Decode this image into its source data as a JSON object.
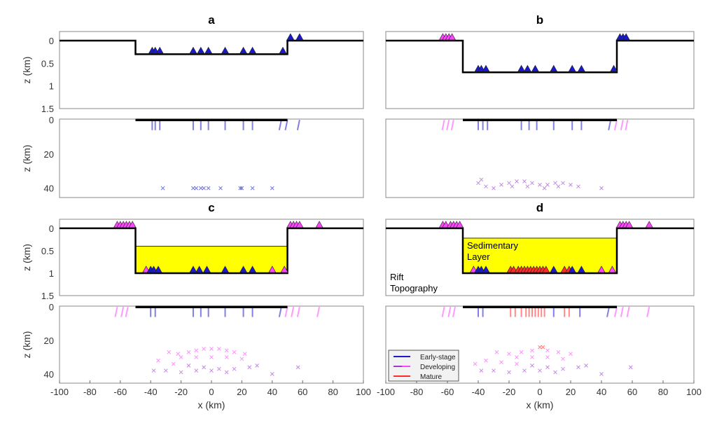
{
  "colors": {
    "early": "#1a1acc",
    "developing_dark": "#9a3ad0",
    "developing_light": "#ff44ff",
    "mature": "#ff2a2a",
    "sediment": "#ffff00",
    "rift": "#000000"
  },
  "chart_data": [
    {
      "type": "scatter",
      "panel": "a",
      "title": "a",
      "xlim": [
        -100,
        100
      ],
      "top_ylim": [
        1.5,
        -0.2
      ],
      "bottom_ylim": [
        45.5,
        -0.5
      ],
      "top_yticks": [
        "0",
        "0.5",
        "1",
        "1.5"
      ],
      "bottom_yticks": [
        "0",
        "20",
        "40"
      ],
      "ylabel": "z (km)",
      "xticks": [],
      "rift": {
        "left": -50,
        "right": 50,
        "depth": 0.3
      },
      "sediment_top": null,
      "stations": [
        [
          -39,
          0.3,
          "e"
        ],
        [
          -37,
          0.3,
          "e"
        ],
        [
          -34,
          0.3,
          "e"
        ],
        [
          -12,
          0.3,
          "e"
        ],
        [
          -7,
          0.3,
          "e"
        ],
        [
          -2,
          0.3,
          "e"
        ],
        [
          9,
          0.3,
          "e"
        ],
        [
          21,
          0.3,
          "e"
        ],
        [
          27,
          0.3,
          "e"
        ],
        [
          47,
          0.3,
          "e"
        ],
        [
          52,
          0,
          "e"
        ],
        [
          58,
          0,
          "e"
        ]
      ],
      "faults": [
        [
          -39,
          "e"
        ],
        [
          -37,
          "e"
        ],
        [
          -34,
          "e"
        ],
        [
          -12,
          "e"
        ],
        [
          -7,
          "e"
        ],
        [
          -2,
          "e"
        ],
        [
          9,
          "e"
        ],
        [
          21,
          "e"
        ],
        [
          27,
          "e"
        ],
        [
          46,
          "e"
        ],
        [
          50,
          "e"
        ],
        [
          58,
          "e"
        ]
      ],
      "events": [
        [
          -32,
          40,
          "e"
        ],
        [
          -12,
          40,
          "e"
        ],
        [
          -10,
          40,
          "e"
        ],
        [
          -7,
          40,
          "e"
        ],
        [
          -5,
          40,
          "e"
        ],
        [
          -2,
          40,
          "e"
        ],
        [
          6,
          40,
          "e"
        ],
        [
          19,
          40,
          "e"
        ],
        [
          20,
          40,
          "e"
        ],
        [
          27,
          40,
          "e"
        ],
        [
          40,
          40,
          "e"
        ]
      ]
    },
    {
      "type": "scatter",
      "panel": "b",
      "title": "b",
      "xlim": [
        -100,
        100
      ],
      "top_ylim": [
        1.5,
        -0.2
      ],
      "bottom_ylim": [
        45.5,
        -0.5
      ],
      "top_yticks": [],
      "bottom_yticks": [],
      "ylabel": "",
      "xticks": [],
      "rift": {
        "left": -50,
        "right": 50,
        "depth": 0.7
      },
      "sediment_top": null,
      "stations": [
        [
          -63,
          0,
          "d"
        ],
        [
          -61,
          0,
          "d"
        ],
        [
          -59,
          0,
          "d"
        ],
        [
          -57,
          0,
          "d"
        ],
        [
          -40,
          0.7,
          "e"
        ],
        [
          -38,
          0.7,
          "e"
        ],
        [
          -35,
          0.7,
          "e"
        ],
        [
          -12,
          0.7,
          "e"
        ],
        [
          -8,
          0.7,
          "e"
        ],
        [
          -3,
          0.7,
          "e"
        ],
        [
          9,
          0.7,
          "e"
        ],
        [
          21,
          0.7,
          "e"
        ],
        [
          27,
          0.7,
          "e"
        ],
        [
          48,
          0.7,
          "e"
        ],
        [
          52,
          0,
          "e"
        ],
        [
          54,
          0,
          "e"
        ],
        [
          56,
          0,
          "e"
        ]
      ],
      "faults": [
        [
          -62,
          "d"
        ],
        [
          -59,
          "d"
        ],
        [
          -56,
          "d"
        ],
        [
          -40,
          "e"
        ],
        [
          -37,
          "e"
        ],
        [
          -34,
          "e"
        ],
        [
          -12,
          "e"
        ],
        [
          -7,
          "e"
        ],
        [
          -2,
          "e"
        ],
        [
          9,
          "e"
        ],
        [
          21,
          "e"
        ],
        [
          27,
          "e"
        ],
        [
          46,
          "e"
        ],
        [
          50,
          "d"
        ],
        [
          54,
          "d"
        ],
        [
          57,
          "d"
        ]
      ],
      "events": [
        [
          -40,
          37,
          "d"
        ],
        [
          -35,
          39,
          "d"
        ],
        [
          -30,
          40,
          "d"
        ],
        [
          -25,
          38,
          "d"
        ],
        [
          -20,
          37,
          "d"
        ],
        [
          -15,
          36,
          "d"
        ],
        [
          -10,
          36,
          "d"
        ],
        [
          -5,
          37,
          "d"
        ],
        [
          0,
          38,
          "d"
        ],
        [
          5,
          38,
          "d"
        ],
        [
          10,
          37,
          "d"
        ],
        [
          15,
          37,
          "d"
        ],
        [
          20,
          38,
          "d"
        ],
        [
          25,
          39,
          "d"
        ],
        [
          -18,
          39,
          "d"
        ],
        [
          -8,
          39,
          "d"
        ],
        [
          3,
          40,
          "d"
        ],
        [
          12,
          39,
          "d"
        ],
        [
          -38,
          35,
          "d"
        ],
        [
          40,
          40,
          "d"
        ]
      ]
    },
    {
      "type": "scatter",
      "panel": "c",
      "title": "c",
      "xlim": [
        -100,
        100
      ],
      "top_ylim": [
        1.5,
        -0.2
      ],
      "bottom_ylim": [
        45.5,
        -0.5
      ],
      "top_yticks": [
        "0",
        "0.5",
        "1",
        "1.5"
      ],
      "bottom_yticks": [
        "0",
        "20",
        "40"
      ],
      "ylabel": "z (km)",
      "xticks": [
        "-100",
        "-80",
        "-60",
        "-40",
        "-20",
        "0",
        "20",
        "40",
        "60",
        "80",
        "100"
      ],
      "xlabel": "x (km)",
      "rift": {
        "left": -50,
        "right": 50,
        "depth": 1.0
      },
      "sediment_top": 0.4,
      "stations": [
        [
          -62,
          0,
          "d"
        ],
        [
          -60,
          0,
          "d"
        ],
        [
          -58,
          0,
          "d"
        ],
        [
          -56,
          0,
          "d"
        ],
        [
          -54,
          0,
          "d"
        ],
        [
          -52,
          0,
          "d"
        ],
        [
          -43,
          1,
          "d"
        ],
        [
          -40,
          1,
          "e"
        ],
        [
          -38,
          1,
          "e"
        ],
        [
          -35,
          1,
          "e"
        ],
        [
          -12,
          1,
          "e"
        ],
        [
          -8,
          1,
          "e"
        ],
        [
          -3,
          1,
          "e"
        ],
        [
          9,
          1,
          "e"
        ],
        [
          21,
          1,
          "e"
        ],
        [
          27,
          1,
          "e"
        ],
        [
          40,
          1,
          "d"
        ],
        [
          48,
          1,
          "d"
        ],
        [
          52,
          0,
          "d"
        ],
        [
          54,
          0,
          "d"
        ],
        [
          56,
          0,
          "d"
        ],
        [
          58,
          0,
          "d"
        ],
        [
          71,
          0,
          "d"
        ]
      ],
      "faults": [
        [
          -62,
          "d"
        ],
        [
          -58,
          "d"
        ],
        [
          -55,
          "d"
        ],
        [
          -40,
          "e"
        ],
        [
          -37,
          "e"
        ],
        [
          -12,
          "e"
        ],
        [
          -7,
          "e"
        ],
        [
          -2,
          "e"
        ],
        [
          9,
          "e"
        ],
        [
          21,
          "e"
        ],
        [
          27,
          "e"
        ],
        [
          46,
          "e"
        ],
        [
          50,
          "d"
        ],
        [
          54,
          "d"
        ],
        [
          58,
          "d"
        ],
        [
          71,
          "d"
        ]
      ],
      "events": [
        [
          -28,
          27,
          "d"
        ],
        [
          -22,
          28,
          "d"
        ],
        [
          -15,
          27,
          "d"
        ],
        [
          -10,
          26,
          "d"
        ],
        [
          -5,
          25,
          "d"
        ],
        [
          0,
          25,
          "d"
        ],
        [
          5,
          25,
          "d"
        ],
        [
          10,
          26,
          "d"
        ],
        [
          15,
          27,
          "d"
        ],
        [
          22,
          28,
          "d"
        ],
        [
          -20,
          30,
          "d"
        ],
        [
          -10,
          30,
          "d"
        ],
        [
          0,
          30,
          "d"
        ],
        [
          10,
          30,
          "d"
        ],
        [
          20,
          31,
          "d"
        ],
        [
          -35,
          32,
          "d"
        ],
        [
          -25,
          34,
          "d"
        ],
        [
          -15,
          35,
          "d"
        ],
        [
          -5,
          36,
          "d"
        ],
        [
          5,
          37,
          "d"
        ],
        [
          15,
          37,
          "d"
        ],
        [
          25,
          36,
          "d"
        ],
        [
          -30,
          38,
          "d"
        ],
        [
          -20,
          39,
          "d"
        ],
        [
          -10,
          38,
          "d"
        ],
        [
          0,
          38,
          "d"
        ],
        [
          10,
          39,
          "d"
        ],
        [
          30,
          35,
          "d"
        ],
        [
          -38,
          38,
          "d"
        ],
        [
          40,
          40,
          "d"
        ],
        [
          57,
          36,
          "d"
        ]
      ]
    },
    {
      "type": "scatter",
      "panel": "d",
      "title": "d",
      "xlim": [
        -100,
        100
      ],
      "top_ylim": [
        1.5,
        -0.2
      ],
      "bottom_ylim": [
        45.5,
        -0.5
      ],
      "top_yticks": [],
      "bottom_yticks": [],
      "ylabel": "",
      "xticks": [
        "-100",
        "-80",
        "-60",
        "-40",
        "-20",
        "0",
        "20",
        "40",
        "60",
        "80",
        "100"
      ],
      "xlabel": "x (km)",
      "rift": {
        "left": -50,
        "right": 50,
        "depth": 1.0
      },
      "sediment_top": 0.22,
      "annotations": {
        "sediment": [
          "Sedimentary",
          "Layer"
        ],
        "rift": [
          "Rift",
          "Topography"
        ]
      },
      "legend": {
        "placement": "bottom-left",
        "entries": [
          "Early-stage",
          "Developing",
          "Mature"
        ]
      },
      "stations": [
        [
          -63,
          0,
          "d"
        ],
        [
          -61,
          0,
          "d"
        ],
        [
          -58,
          0,
          "d"
        ],
        [
          -56,
          0,
          "d"
        ],
        [
          -54,
          0,
          "d"
        ],
        [
          -52,
          0,
          "d"
        ],
        [
          -43,
          1,
          "d"
        ],
        [
          -40,
          1,
          "e"
        ],
        [
          -38,
          1,
          "e"
        ],
        [
          -35,
          1,
          "e"
        ],
        [
          -19,
          1,
          "m"
        ],
        [
          -17,
          1,
          "m"
        ],
        [
          -14,
          1,
          "m"
        ],
        [
          -12,
          1,
          "m"
        ],
        [
          -10,
          1,
          "m"
        ],
        [
          -8,
          1,
          "m"
        ],
        [
          -6,
          1,
          "m"
        ],
        [
          -4,
          1,
          "m"
        ],
        [
          -2,
          1,
          "m"
        ],
        [
          0,
          1,
          "m"
        ],
        [
          2,
          1,
          "m"
        ],
        [
          4,
          1,
          "m"
        ],
        [
          9,
          1,
          "e"
        ],
        [
          16,
          1,
          "m"
        ],
        [
          19,
          1,
          "m"
        ],
        [
          21,
          1,
          "e"
        ],
        [
          27,
          1,
          "e"
        ],
        [
          40,
          1,
          "d"
        ],
        [
          47,
          1,
          "d"
        ],
        [
          52,
          0,
          "d"
        ],
        [
          54,
          0,
          "d"
        ],
        [
          56,
          0,
          "d"
        ],
        [
          58,
          0,
          "d"
        ],
        [
          71,
          0,
          "d"
        ]
      ],
      "faults": [
        [
          -62,
          "d"
        ],
        [
          -58,
          "d"
        ],
        [
          -55,
          "d"
        ],
        [
          -40,
          "e"
        ],
        [
          -37,
          "e"
        ],
        [
          -19,
          "m"
        ],
        [
          -16,
          "m"
        ],
        [
          -12,
          "m"
        ],
        [
          -9,
          "m"
        ],
        [
          -7,
          "m"
        ],
        [
          -5,
          "m"
        ],
        [
          -3,
          "m"
        ],
        [
          -1,
          "m"
        ],
        [
          1,
          "m"
        ],
        [
          3,
          "m"
        ],
        [
          9,
          "e"
        ],
        [
          16,
          "m"
        ],
        [
          19,
          "m"
        ],
        [
          26,
          "e"
        ],
        [
          45,
          "e"
        ],
        [
          50,
          "d"
        ],
        [
          54,
          "d"
        ],
        [
          58,
          "d"
        ],
        [
          71,
          "d"
        ]
      ],
      "events": [
        [
          0,
          24,
          "m"
        ],
        [
          2,
          24,
          "m"
        ],
        [
          -28,
          27,
          "d"
        ],
        [
          -20,
          28,
          "d"
        ],
        [
          -12,
          27,
          "d"
        ],
        [
          -5,
          26,
          "d"
        ],
        [
          5,
          26,
          "d"
        ],
        [
          12,
          27,
          "d"
        ],
        [
          20,
          28,
          "d"
        ],
        [
          -15,
          30,
          "d"
        ],
        [
          -5,
          30,
          "d"
        ],
        [
          5,
          30,
          "d"
        ],
        [
          15,
          31,
          "d"
        ],
        [
          -35,
          32,
          "d"
        ],
        [
          -25,
          33,
          "d"
        ],
        [
          -15,
          34,
          "d"
        ],
        [
          -5,
          35,
          "d"
        ],
        [
          5,
          36,
          "d"
        ],
        [
          15,
          37,
          "d"
        ],
        [
          25,
          36,
          "d"
        ],
        [
          30,
          35,
          "d"
        ],
        [
          -30,
          38,
          "d"
        ],
        [
          -20,
          39,
          "d"
        ],
        [
          -10,
          38,
          "d"
        ],
        [
          0,
          38,
          "d"
        ],
        [
          10,
          39,
          "d"
        ],
        [
          -38,
          38,
          "d"
        ],
        [
          -42,
          34,
          "d"
        ],
        [
          40,
          40,
          "d"
        ],
        [
          59,
          36,
          "d"
        ]
      ]
    }
  ]
}
